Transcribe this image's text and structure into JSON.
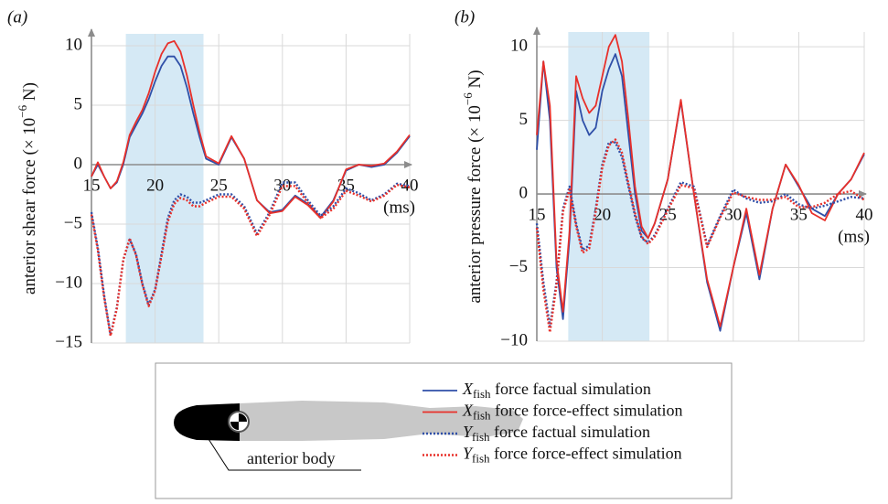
{
  "chart_data": [
    {
      "type": "line",
      "panel": "(a)",
      "ylabel": "anterior shear force (× 10−6 N)",
      "xlabel": "(ms)",
      "x": [
        15,
        15.5,
        16,
        16.5,
        17,
        17.5,
        18,
        18.5,
        19,
        19.5,
        20,
        20.5,
        21,
        21.5,
        22,
        22.5,
        23,
        23.5,
        24,
        25,
        26,
        27,
        28,
        29,
        30,
        31,
        32,
        33,
        34,
        35,
        36,
        37,
        38,
        39,
        40
      ],
      "xlim": [
        15,
        40
      ],
      "xticks": [
        15,
        20,
        25,
        30,
        35,
        40
      ],
      "ylim": [
        -15,
        11
      ],
      "yticks": [
        {
          "value": -15,
          "label": "−15"
        },
        {
          "value": -10,
          "label": "−10"
        },
        {
          "value": -5,
          "label": "−5"
        },
        0,
        5,
        10
      ],
      "grid": true,
      "shaded_region": {
        "x": [
          17.7,
          23.8
        ],
        "color": "#d5e9f5"
      },
      "series": [
        {
          "name": "Xfish force factual simulation",
          "color": "#2f4fa8",
          "dash": false,
          "values": [
            -1,
            0,
            -1,
            -2,
            -1.5,
            0,
            2.3,
            3.3,
            4.3,
            5.5,
            7,
            8.3,
            9.1,
            9.1,
            8.3,
            6.5,
            4.3,
            2.3,
            0.5,
            0,
            2.3,
            0.5,
            -3,
            -4,
            -3.8,
            -2.6,
            -3.3,
            -4.4,
            -3,
            -0.5,
            0,
            -0.2,
            0,
            1,
            2.4
          ]
        },
        {
          "name": "Xfish force force-effect simulation",
          "color": "#e8302a",
          "dash": false,
          "values": [
            -1,
            0.2,
            -1,
            -2,
            -1.4,
            0.2,
            2.5,
            3.6,
            4.6,
            6,
            7.8,
            9.3,
            10.2,
            10.4,
            9.5,
            7.5,
            5,
            2.7,
            0.7,
            0.1,
            2.4,
            0.5,
            -3,
            -4.1,
            -3.9,
            -2.7,
            -3.4,
            -4.5,
            -3.1,
            -0.4,
            0,
            -0.1,
            0.1,
            1.1,
            2.5
          ]
        },
        {
          "name": "Yfish force factual simulation",
          "color": "#2f4fa8",
          "dash": true,
          "values": [
            -4,
            -7,
            -11,
            -14.3,
            -12,
            -8,
            -6.3,
            -7.5,
            -10,
            -11.8,
            -10.5,
            -7.5,
            -4.5,
            -3,
            -2.5,
            -2.7,
            -3.2,
            -3.2,
            -3,
            -2.5,
            -2.5,
            -3.5,
            -5.8,
            -4,
            -1.5,
            -1.5,
            -3,
            -4.3,
            -3.5,
            -2,
            -2.4,
            -3,
            -2.5,
            -1.6,
            -1.8
          ]
        },
        {
          "name": "Yfish force force-effect simulation",
          "color": "#e8302a",
          "dash": true,
          "values": [
            -4.2,
            -7.2,
            -11.2,
            -14.4,
            -12.1,
            -8,
            -6.2,
            -7.6,
            -10.1,
            -11.9,
            -10.6,
            -7.7,
            -4.8,
            -3.3,
            -2.8,
            -3,
            -3.5,
            -3.5,
            -3.2,
            -2.7,
            -2.7,
            -3.7,
            -6,
            -4.2,
            -1.8,
            -1.8,
            -3.2,
            -4.5,
            -3.7,
            -2.2,
            -2.6,
            -3.1,
            -2.6,
            -1.7,
            -1.9
          ]
        }
      ]
    },
    {
      "type": "line",
      "panel": "(b)",
      "ylabel": "anterior pressure force (× 10−6 N)",
      "xlabel": "(ms)",
      "x": [
        15,
        15.5,
        16,
        16.5,
        17,
        17.5,
        18,
        18.5,
        19,
        19.5,
        20,
        20.5,
        21,
        21.5,
        22,
        22.5,
        23,
        23.5,
        24,
        25,
        26,
        27,
        28,
        29,
        30,
        31,
        32,
        33,
        34,
        35,
        36,
        37,
        38,
        39,
        40
      ],
      "xlim": [
        15,
        40
      ],
      "xticks": [
        15,
        20,
        25,
        30,
        35,
        40
      ],
      "ylim": [
        -10,
        11
      ],
      "yticks": [
        {
          "value": -10,
          "label": "−10"
        },
        {
          "value": -5,
          "label": "−5"
        },
        0,
        5,
        10
      ],
      "grid": true,
      "shaded_region": {
        "x": [
          17.4,
          23.6
        ],
        "color": "#d5e9f5"
      },
      "series": [
        {
          "name": "Xfish force factual simulation",
          "color": "#2f4fa8",
          "dash": false,
          "values": [
            3,
            9,
            5,
            -5,
            -8.5,
            -3,
            7,
            5,
            4,
            4.5,
            7,
            8.5,
            9.5,
            8,
            4,
            0,
            -2.5,
            -3,
            -2,
            1,
            6.3,
            0,
            -6,
            -9.3,
            -5,
            -1.3,
            -5.8,
            -1,
            2,
            0.5,
            -1,
            -1.5,
            0,
            1,
            2.7
          ]
        },
        {
          "name": "Xfish force force-effect simulation",
          "color": "#e8302a",
          "dash": false,
          "values": [
            4,
            9,
            6,
            -4.5,
            -8,
            -2.5,
            8,
            6.5,
            5.5,
            6,
            8,
            10,
            10.8,
            9,
            5,
            0.5,
            -2.2,
            -3,
            -2,
            1,
            6.4,
            0,
            -5.8,
            -9,
            -5,
            -1,
            -5.5,
            -1,
            2,
            0.6,
            -1.3,
            -1.8,
            0,
            1,
            2.8
          ]
        },
        {
          "name": "Yfish force factual simulation",
          "color": "#2f4fa8",
          "dash": true,
          "values": [
            -2,
            -6,
            -9,
            -6,
            -1,
            0.5,
            -2,
            -3.8,
            -3.5,
            -1,
            2,
            3.5,
            3.5,
            2.5,
            0.5,
            -1.5,
            -3,
            -3.3,
            -2.8,
            -1,
            0.8,
            0.5,
            -3.5,
            -1.5,
            0.3,
            -0.3,
            -0.6,
            -0.5,
            0,
            -0.7,
            -1,
            -0.8,
            -0.5,
            -0.2,
            -0.3
          ]
        },
        {
          "name": "Yfish force force-effect simulation",
          "color": "#e8302a",
          "dash": true,
          "values": [
            -2.3,
            -6.5,
            -9.4,
            -6.2,
            -1.2,
            0.3,
            -2.2,
            -4,
            -3.7,
            -1.2,
            1.8,
            3.3,
            3.7,
            2.8,
            0.7,
            -1.3,
            -2.9,
            -3.4,
            -2.9,
            -1.1,
            0.6,
            0.4,
            -3.6,
            -1.6,
            0.1,
            -0.2,
            -0.4,
            -0.4,
            -0.2,
            -0.9,
            -0.9,
            -0.6,
            0,
            0.2,
            -0.4
          ]
        }
      ]
    }
  ],
  "annotation": "anterior body"
}
